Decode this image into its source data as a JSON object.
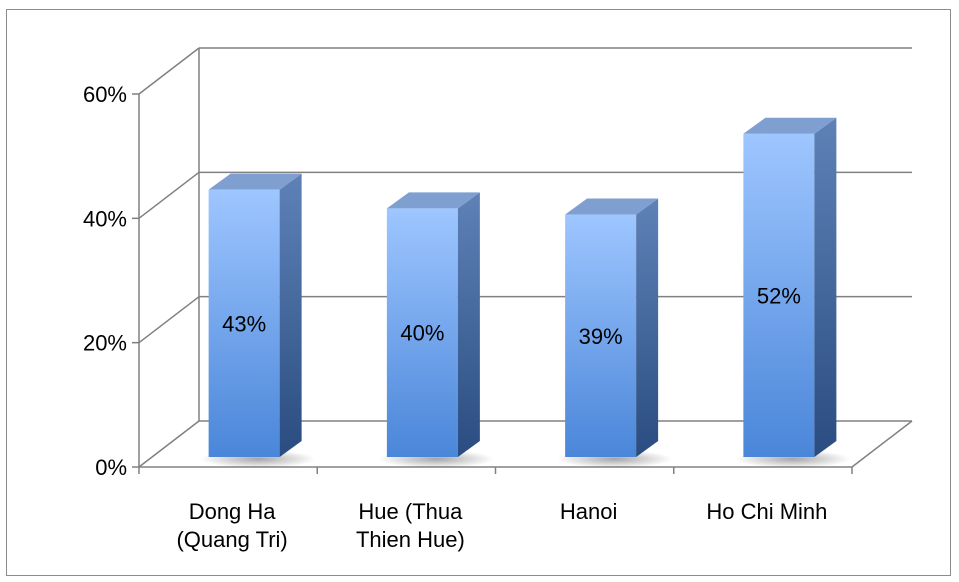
{
  "chart_data": {
    "type": "bar",
    "style": "3d-column",
    "categories": [
      [
        "Dong Ha",
        "(Quang Tri)"
      ],
      [
        "Hue (Thua",
        "Thien Hue)"
      ],
      [
        "Hanoi"
      ],
      [
        "Ho Chi Minh"
      ]
    ],
    "values": [
      43,
      40,
      39,
      52
    ],
    "data_labels": [
      "43%",
      "40%",
      "39%",
      "52%"
    ],
    "y_ticks": [
      {
        "value": 0,
        "label": "0%"
      },
      {
        "value": 20,
        "label": "20%"
      },
      {
        "value": 40,
        "label": "40%"
      },
      {
        "value": 60,
        "label": "60%"
      }
    ],
    "ylim": [
      0,
      60
    ],
    "grid": true,
    "legend": "none",
    "title": "",
    "xlabel": "",
    "ylabel": "",
    "colors": {
      "bar_front_light": "#9ec6ff",
      "bar_front_dark": "#4a86d9",
      "bar_side_light": "#5e82b8",
      "bar_side_dark": "#2a4c80",
      "bar_top": "#7f9fd0",
      "gridline": "#808080",
      "axis": "#808080"
    }
  }
}
